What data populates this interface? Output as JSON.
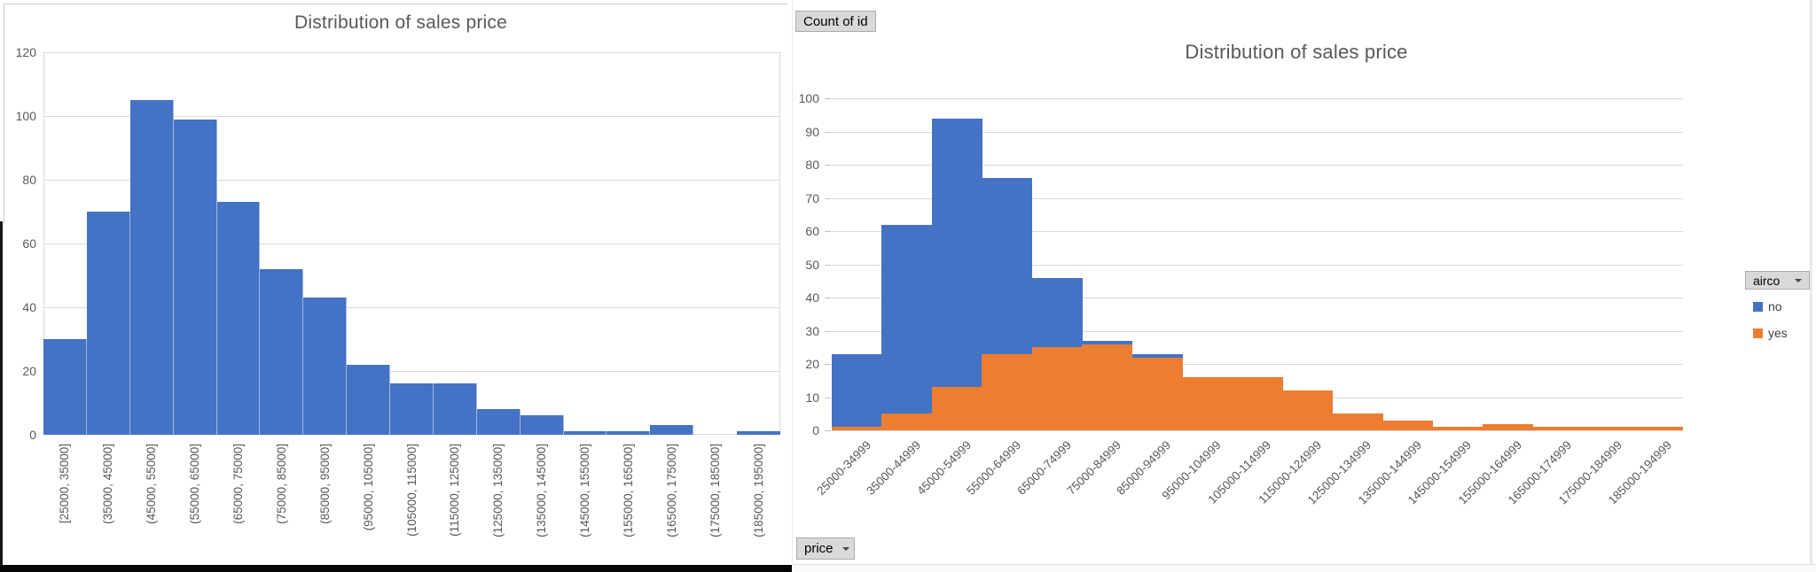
{
  "pivot_buttons": {
    "value_field": "Count of id",
    "legend_field": "airco",
    "axis_field": "price"
  },
  "colors": {
    "series_blue": "#4472C4",
    "series_orange": "#ED7D31",
    "gridline": "#D9D9D9",
    "axis_text": "#595959",
    "title_text": "#595959",
    "button_bg": "#D9D9D9",
    "button_border": "#ABABAB"
  },
  "chart_data": [
    {
      "type": "bar",
      "subtype": "histogram",
      "title": "Distribution of sales price",
      "xlabel": "",
      "ylabel": "",
      "ylim": [
        0,
        120
      ],
      "ytick_step": 20,
      "grid": true,
      "x_label_rotation": 90,
      "bar_color": "#4472C4",
      "categories": [
        "[25000, 35000]",
        "(35000, 45000]",
        "(45000, 55000]",
        "(55000, 65000]",
        "(65000, 75000]",
        "(75000, 85000]",
        "(85000, 95000]",
        "(95000, 105000]",
        "(105000, 115000]",
        "(115000, 125000]",
        "(125000, 135000]",
        "(135000, 145000]",
        "(145000, 155000]",
        "(155000, 165000]",
        "(165000, 175000]",
        "(175000, 185000]",
        "(185000, 195000]"
      ],
      "values": [
        30,
        70,
        105,
        99,
        73,
        52,
        43,
        22,
        16,
        16,
        8,
        6,
        1,
        1,
        3,
        0,
        1
      ]
    },
    {
      "type": "bar",
      "subtype": "pivot-histogram-overlapped",
      "title": "Distribution of sales price",
      "xlabel": "",
      "ylabel": "",
      "ylim": [
        0,
        100
      ],
      "ytick_step": 10,
      "grid": true,
      "x_label_rotation": 45,
      "legend": {
        "field": "airco",
        "position": "right"
      },
      "overlap_note": "zero gap width; 'yes' series drawn in front of 'no' series",
      "categories": [
        "25000-34999",
        "35000-44999",
        "45000-54999",
        "55000-64999",
        "65000-74999",
        "75000-84999",
        "85000-94999",
        "95000-104999",
        "105000-114999",
        "115000-124999",
        "125000-134999",
        "135000-144999",
        "145000-154999",
        "155000-164999",
        "165000-174999",
        "175000-184999",
        "185000-194999"
      ],
      "series": [
        {
          "name": "no",
          "color": "#4472C4",
          "values": [
            23,
            62,
            94,
            76,
            46,
            27,
            23,
            0,
            0,
            0,
            0,
            0,
            0,
            0,
            0,
            0,
            0
          ]
        },
        {
          "name": "yes",
          "color": "#ED7D31",
          "values": [
            1,
            5,
            13,
            23,
            25,
            26,
            22,
            16,
            16,
            12,
            5,
            3,
            1,
            2,
            1,
            1,
            1
          ]
        }
      ]
    }
  ]
}
